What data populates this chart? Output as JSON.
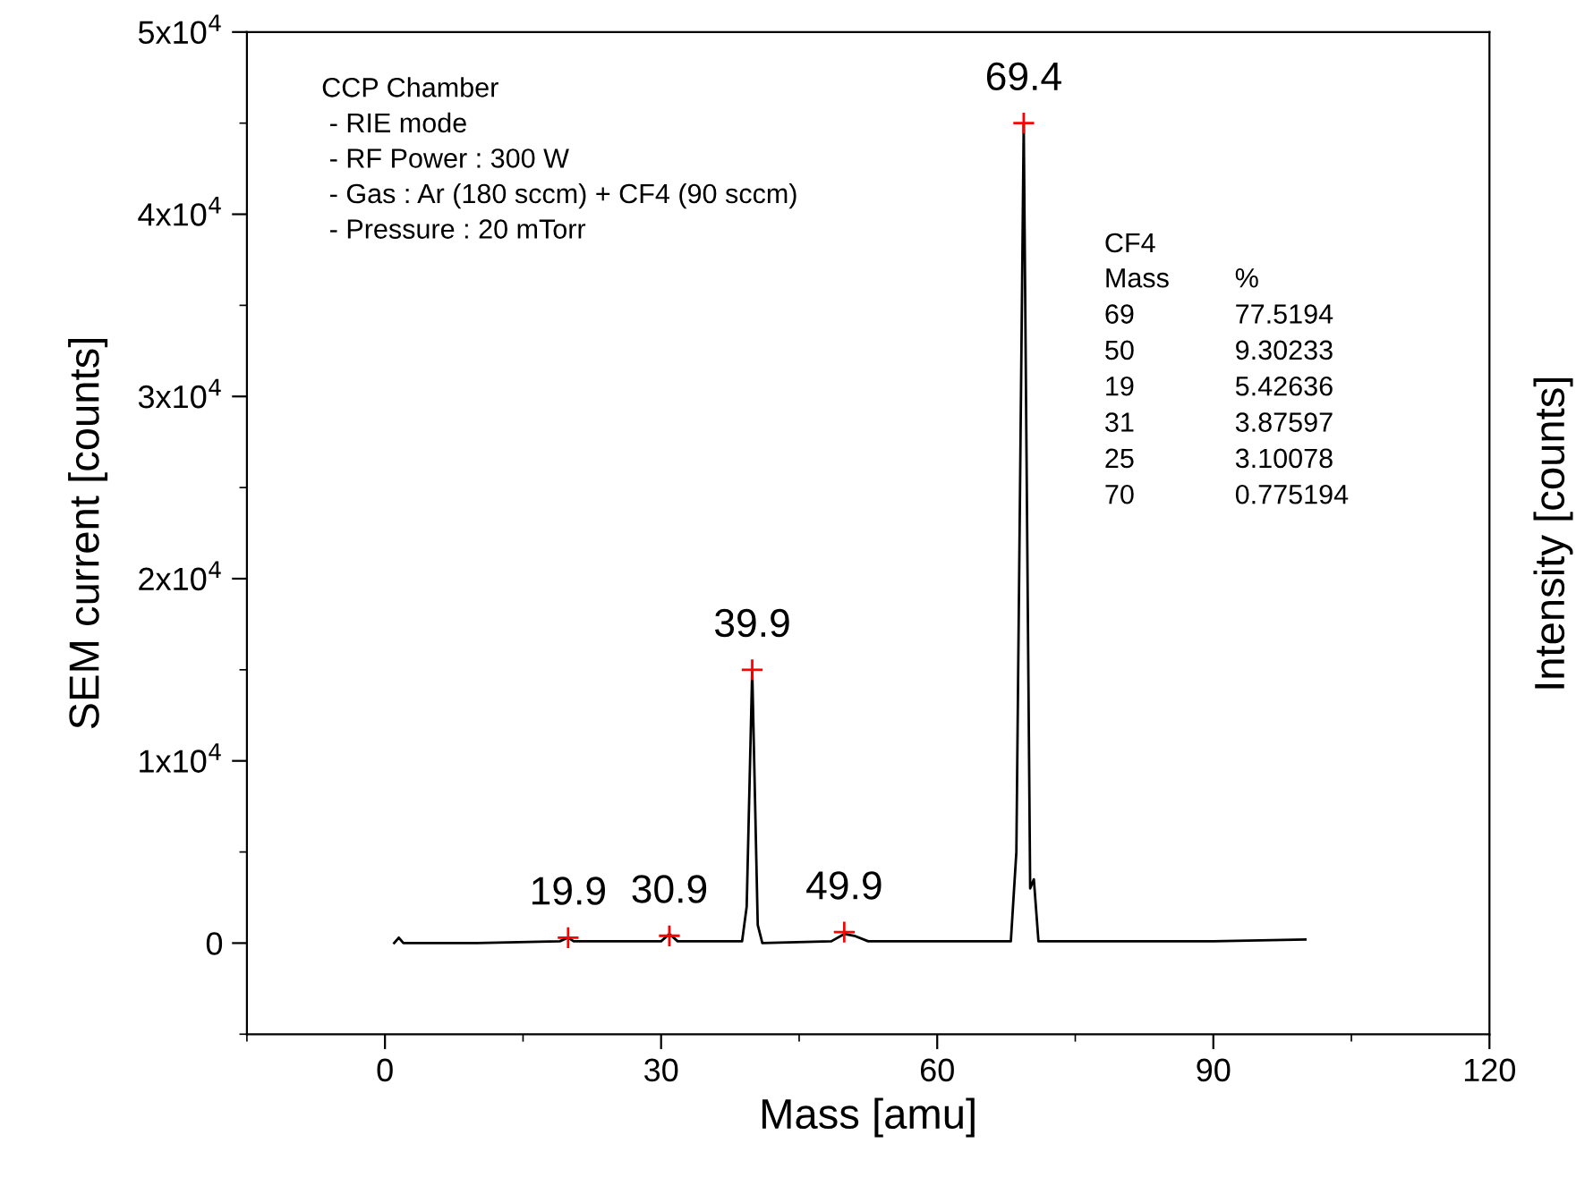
{
  "chart_data": {
    "type": "line",
    "xlabel": "Mass [amu]",
    "ylabel": "SEM current [counts]",
    "y2label": "Intensity [counts]",
    "xlim": [
      -15,
      120
    ],
    "xticks": [
      0,
      30,
      60,
      90,
      120
    ],
    "ylim": [
      -5000,
      50000
    ],
    "yticks": [
      {
        "value": 0,
        "label": "0"
      },
      {
        "value": 10000,
        "label": "1x10$^{4}$"
      },
      {
        "value": 20000,
        "label": "2x10$^{4}$"
      },
      {
        "value": 30000,
        "label": "3x10$^{4}$"
      },
      {
        "value": 40000,
        "label": "4x10$^{4}$"
      },
      {
        "value": 50000,
        "label": "5x10$^{4}$"
      }
    ],
    "grid": false,
    "legend": false,
    "series": [
      {
        "color": "#000000",
        "marker": "none",
        "line_style": "solid",
        "x": [
          1,
          1.5,
          2,
          10,
          19,
          19.9,
          20.5,
          30,
          30.9,
          31.8,
          38.8,
          39.3,
          39.9,
          40.5,
          41,
          48.5,
          49.9,
          51,
          52.5,
          68,
          68.6,
          69.4,
          70.1,
          70.5,
          71,
          80,
          90,
          100
        ],
        "values": [
          0,
          300,
          0,
          0,
          100,
          300,
          100,
          100,
          500,
          100,
          100,
          2000,
          15000,
          1000,
          0,
          100,
          500,
          400,
          100,
          100,
          5000,
          45000,
          3000,
          3500,
          100,
          100,
          100,
          200
        ]
      },
      {
        "type": "scatter",
        "color": "#ff0000",
        "marker": "cross",
        "x": [
          19.9,
          30.9,
          39.9,
          49.9,
          69.4
        ],
        "values": [
          300,
          400,
          15000,
          600,
          45000
        ]
      }
    ],
    "annotations": [
      {
        "text": "19.9",
        "x": 19.9,
        "y": 300
      },
      {
        "text": "30.9",
        "x": 30.9,
        "y": 400
      },
      {
        "text": "39.9",
        "x": 39.9,
        "y": 15000
      },
      {
        "text": "49.9",
        "x": 49.9,
        "y": 600
      },
      {
        "text": "69.4",
        "x": 69.4,
        "y": 45000
      },
      "CCP Chamber\n - RIE mode\n - RF Power : 300 W\n - Gas : Ar (180 sccm) + CF4 (90 sccm)\n - Pressure : 20 mTorr",
      "CF4",
      "Mass",
      "%",
      "69",
      "77.5194",
      "50",
      "9.30233",
      "19",
      "5.42636",
      "31",
      "3.87597",
      "25",
      "3.10078",
      "70",
      "0.775194"
    ]
  }
}
